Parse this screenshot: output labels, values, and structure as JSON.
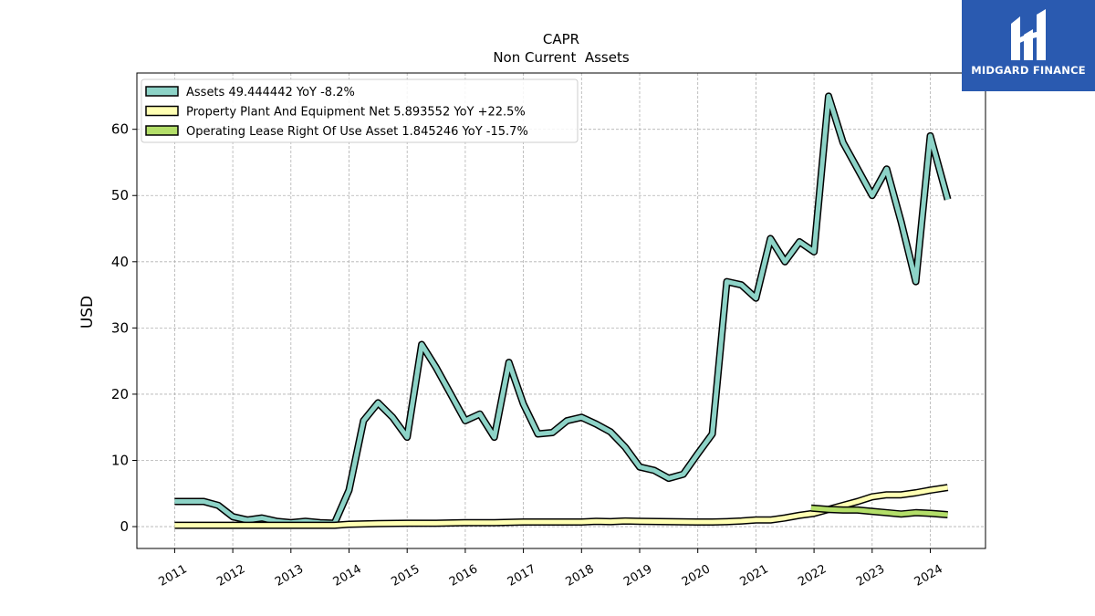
{
  "brand": {
    "name": "MIDGARD FINANCE",
    "color": "#2a5ab0",
    "icon": "midgard-logo-icon"
  },
  "chart_data": {
    "type": "line",
    "title": "CAPR",
    "subtitle": "Non Current  Assets",
    "ylabel": "USD",
    "xlabel": "",
    "ylim": [
      -3.3,
      68.5
    ],
    "xlim": [
      2010.35,
      2024.95
    ],
    "yticks": [
      0,
      10,
      20,
      30,
      40,
      50,
      60
    ],
    "xticks": [
      "2011",
      "2012",
      "2013",
      "2014",
      "2015",
      "2016",
      "2017",
      "2018",
      "2019",
      "2020",
      "2021",
      "2022",
      "2023",
      "2024"
    ],
    "grid": true,
    "legend_position": "top-left",
    "series": [
      {
        "name": "Assets",
        "legend": "Assets  49.444442 YoY -8.2%",
        "color": "#8dd3c7",
        "x": [
          2011.0,
          2011.25,
          2011.5,
          2011.75,
          2012.0,
          2012.25,
          2012.5,
          2012.75,
          2013.0,
          2013.25,
          2013.5,
          2013.75,
          2014.0,
          2014.25,
          2014.5,
          2014.75,
          2015.0,
          2015.25,
          2015.5,
          2015.75,
          2016.0,
          2016.25,
          2016.5,
          2016.75,
          2017.0,
          2017.25,
          2017.5,
          2017.75,
          2018.0,
          2018.25,
          2018.5,
          2018.75,
          2019.0,
          2019.25,
          2019.5,
          2019.75,
          2020.0,
          2020.25,
          2020.5,
          2020.75,
          2021.0,
          2021.25,
          2021.5,
          2021.75,
          2022.0,
          2022.25,
          2022.5,
          2022.75,
          2023.0,
          2023.25,
          2023.5,
          2023.75,
          2024.0,
          2024.3
        ],
        "y": [
          3.8,
          3.8,
          3.8,
          3.2,
          1.5,
          1.0,
          1.3,
          0.8,
          0.6,
          0.8,
          0.6,
          0.5,
          5.5,
          16.0,
          18.7,
          16.5,
          13.5,
          27.5,
          24.0,
          20.0,
          16.0,
          17.0,
          13.5,
          24.8,
          18.5,
          14.0,
          14.2,
          16.0,
          16.5,
          15.5,
          14.3,
          12.0,
          9.0,
          8.5,
          7.3,
          7.9,
          11.0,
          14.0,
          37.0,
          36.5,
          34.5,
          43.5,
          40.0,
          43.0,
          41.5,
          65.0,
          58.0,
          54.0,
          50.0,
          54.0,
          46.0,
          37.0,
          59.0,
          49.4
        ]
      },
      {
        "name": "Property Plant And Equipment Net",
        "legend": "Property Plant And Equipment Net  5.893552 YoY +22.5%",
        "color": "#ffffb3",
        "x": [
          2011.0,
          2011.5,
          2012.0,
          2012.5,
          2013.0,
          2013.5,
          2013.75,
          2014.0,
          2014.5,
          2015.0,
          2015.5,
          2016.0,
          2016.5,
          2017.0,
          2017.5,
          2018.0,
          2018.25,
          2018.5,
          2018.75,
          2019.0,
          2019.5,
          2020.0,
          2020.25,
          2020.5,
          2020.75,
          2021.0,
          2021.25,
          2021.5,
          2021.75,
          2022.0,
          2022.25,
          2022.5,
          2022.75,
          2023.0,
          2023.25,
          2023.5,
          2023.75,
          2024.0,
          2024.3
        ],
        "y": [
          0.2,
          0.2,
          0.2,
          0.2,
          0.2,
          0.2,
          0.2,
          0.35,
          0.45,
          0.5,
          0.5,
          0.6,
          0.6,
          0.7,
          0.7,
          0.7,
          0.8,
          0.75,
          0.85,
          0.8,
          0.75,
          0.7,
          0.7,
          0.75,
          0.85,
          1.0,
          1.0,
          1.3,
          1.7,
          2.0,
          2.6,
          3.2,
          3.8,
          4.5,
          4.8,
          4.8,
          5.1,
          5.5,
          5.9
        ]
      },
      {
        "name": "Operating Lease Right Of Use Asset",
        "legend": "Operating Lease Right Of Use Asset  1.845246 YoY -15.7%",
        "color": "#b3de69",
        "x": [
          2021.95,
          2022.25,
          2022.5,
          2022.75,
          2023.0,
          2023.25,
          2023.5,
          2023.75,
          2024.0,
          2024.3
        ],
        "y": [
          2.8,
          2.6,
          2.5,
          2.5,
          2.3,
          2.1,
          1.9,
          2.1,
          2.0,
          1.8
        ]
      }
    ]
  }
}
